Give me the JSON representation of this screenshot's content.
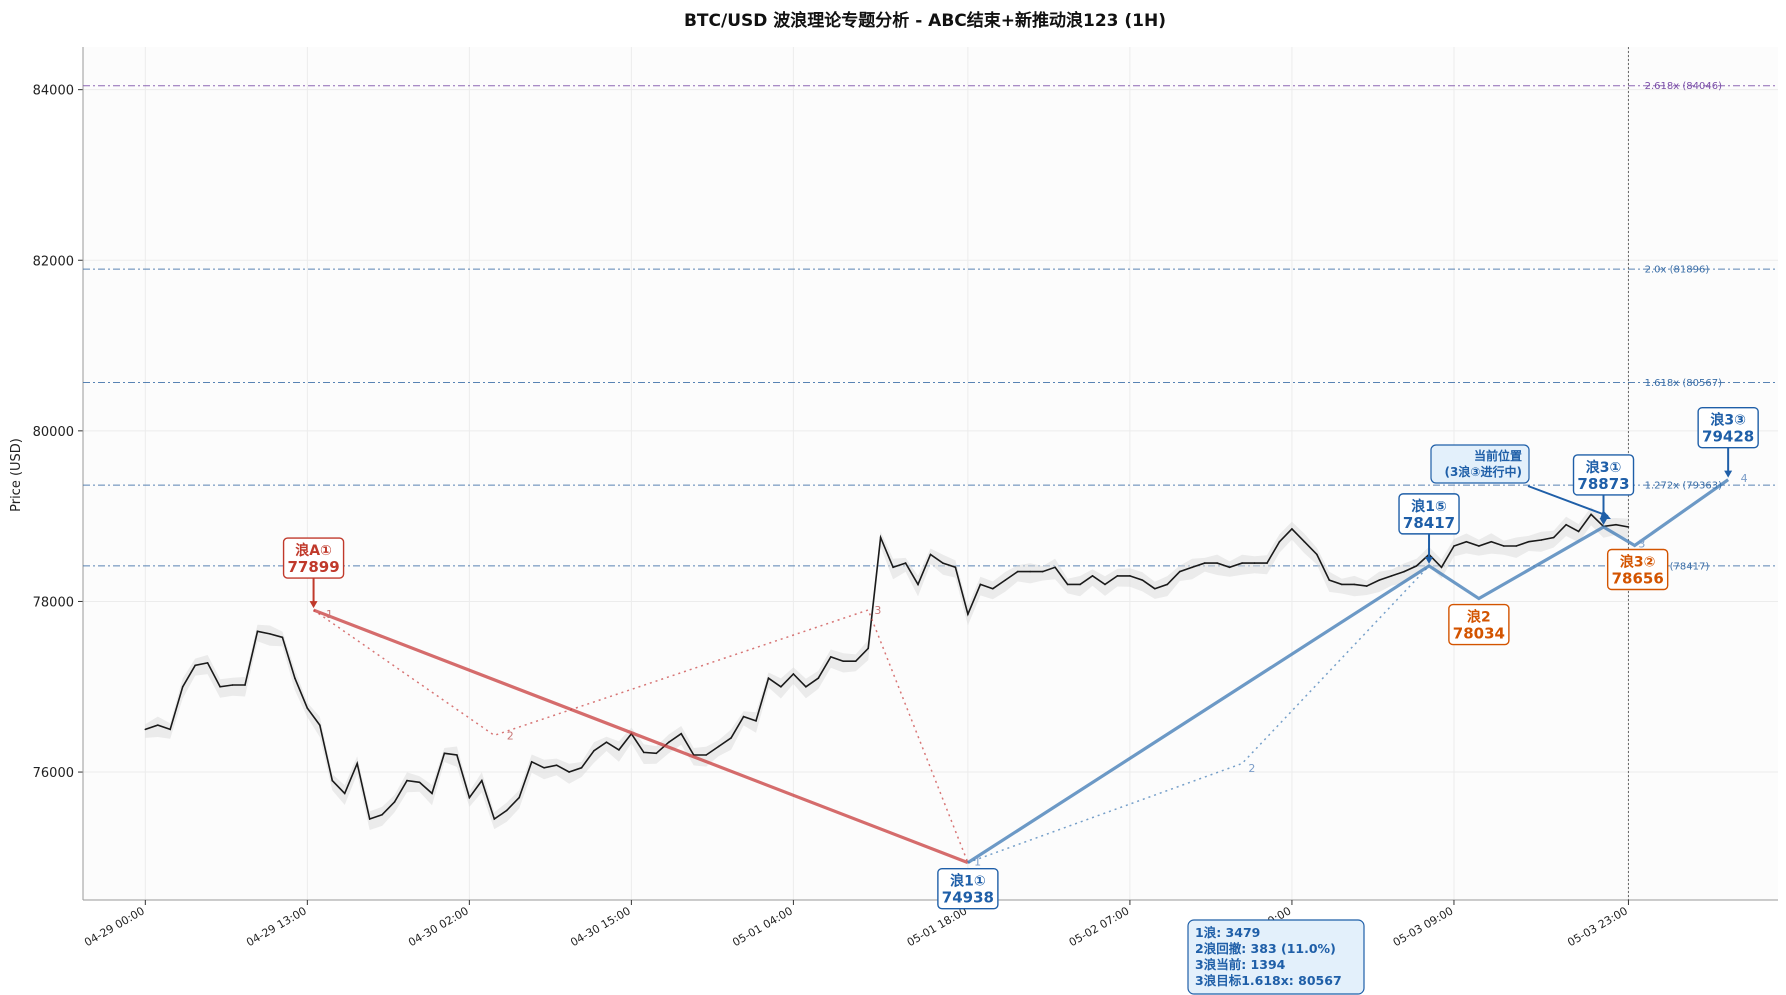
{
  "chart_data": {
    "type": "line",
    "title": "BTC/USD 波浪理论专题分析 - ABC结束+新推动浪123 (1H)",
    "ylabel": "Price (USD)",
    "xlabel": "",
    "ylim": [
      74500,
      84500
    ],
    "yticks": [
      76000,
      78000,
      80000,
      82000,
      84000
    ],
    "x_domain_hours": [
      -5,
      131
    ],
    "x_ticks": [
      {
        "label": "04-29 00:00",
        "h": 0
      },
      {
        "label": "04-29 13:00",
        "h": 13
      },
      {
        "label": "04-30 02:00",
        "h": 26
      },
      {
        "label": "04-30 15:00",
        "h": 39
      },
      {
        "label": "05-01 04:00",
        "h": 52
      },
      {
        "label": "05-01 18:00",
        "h": 66
      },
      {
        "label": "05-02 07:00",
        "h": 79
      },
      {
        "label": "05-02 20:00",
        "h": 92
      },
      {
        "label": "05-03 09:00",
        "h": 105
      },
      {
        "label": "05-03 23:00",
        "h": 119
      }
    ],
    "current_time_h": 119,
    "grid": true,
    "series": [
      {
        "kind": "price",
        "x_hours": [
          0,
          1,
          2,
          3,
          4,
          5,
          6,
          7,
          8,
          9,
          10,
          11,
          12,
          13,
          14,
          15,
          16,
          17,
          18,
          19,
          20,
          21,
          22,
          23,
          24,
          25,
          26,
          27,
          28,
          29,
          30,
          31,
          32,
          33,
          34,
          35,
          36,
          37,
          38,
          39,
          40,
          41,
          42,
          43,
          44,
          45,
          46,
          47,
          48,
          49,
          50,
          51,
          52,
          53,
          54,
          55,
          56,
          57,
          58,
          59,
          60,
          61,
          62,
          63,
          64,
          65,
          66,
          67,
          68,
          69,
          70,
          71,
          72,
          73,
          74,
          75,
          76,
          77,
          78,
          79,
          80,
          81,
          82,
          83,
          84,
          85,
          86,
          87,
          88,
          89,
          90,
          91,
          92,
          93,
          94,
          95,
          96,
          97,
          98,
          99,
          100,
          101,
          102,
          103,
          104,
          105,
          106,
          107,
          108,
          109,
          110,
          111,
          112,
          113,
          114,
          115,
          116,
          117,
          118,
          119
        ],
        "values": [
          76500,
          76550,
          76500,
          77000,
          77250,
          77280,
          77000,
          77020,
          77020,
          77650,
          77620,
          77580,
          77100,
          76750,
          76550,
          75900,
          75750,
          76100,
          75450,
          75500,
          75650,
          75900,
          75880,
          75750,
          76220,
          76200,
          75700,
          75900,
          75450,
          75550,
          75700,
          76120,
          76050,
          76080,
          76000,
          76050,
          76250,
          76350,
          76260,
          76450,
          76230,
          76220,
          76350,
          76450,
          76200,
          76200,
          76300,
          76400,
          76650,
          76600,
          77100,
          77000,
          77150,
          77000,
          77100,
          77350,
          77300,
          77300,
          77450,
          78750,
          78400,
          78450,
          78200,
          78550,
          78450,
          78400,
          77850,
          78200,
          78150,
          78250,
          78350,
          78350,
          78350,
          78400,
          78200,
          78200,
          78300,
          78200,
          78300,
          78300,
          78250,
          78150,
          78200,
          78350,
          78400,
          78450,
          78450,
          78400,
          78450,
          78450,
          78450,
          78700,
          78850,
          78700,
          78550,
          78250,
          78200,
          78200,
          78180,
          78250,
          78300,
          78350,
          78417,
          78550,
          78400,
          78650,
          78700,
          78650,
          78700,
          78650,
          78650,
          78700,
          78720,
          78750,
          78900,
          78820,
          79020,
          78880,
          78900,
          78873
        ]
      }
    ],
    "waves": {
      "abc": {
        "color": "#c83c3c",
        "points": [
          {
            "h": 13.5,
            "v": 77899
          },
          {
            "h": 66,
            "v": 74938
          }
        ],
        "sub_path": [
          {
            "h": 13.5,
            "v": 77899
          },
          {
            "h": 28,
            "v": 76430
          },
          {
            "h": 58,
            "v": 77900
          },
          {
            "h": 66,
            "v": 74938
          }
        ],
        "sub_labels": [
          "1",
          "2",
          "3"
        ]
      },
      "impulse": {
        "color": "#3c78b4",
        "points": [
          {
            "h": 66,
            "v": 74938
          },
          {
            "h": 103,
            "v": 78417
          },
          {
            "h": 107,
            "v": 78034
          },
          {
            "h": 117,
            "v": 78873
          },
          {
            "h": 119.5,
            "v": 78656
          },
          {
            "h": 127,
            "v": 79428
          }
        ],
        "sub_path": [
          {
            "h": 66,
            "v": 74938
          },
          {
            "h": 88,
            "v": 76100
          },
          {
            "h": 103,
            "v": 78417
          }
        ],
        "sub_labels": [
          "1",
          "2",
          "3",
          "4"
        ]
      }
    },
    "fib_levels": [
      {
        "label": "2.618x (84046)",
        "value": 84046,
        "color": "#7b4fa8"
      },
      {
        "label": "2.0x (81896)",
        "value": 81896,
        "color": "#3c6fa8"
      },
      {
        "label": "1.618x (80567)",
        "value": 80567,
        "color": "#3c6fa8"
      },
      {
        "label": "1.272x (79363)",
        "value": 79363,
        "color": "#3c6fa8"
      },
      {
        "label": "1.0x (78417)",
        "value": 78417,
        "color": "#3c6fa8"
      }
    ],
    "annotations": [
      {
        "id": "waveA1",
        "line1": "浪A①",
        "line2": "77899",
        "h": 13.5,
        "v": 77899,
        "color": "#c0392b"
      },
      {
        "id": "wave1-1",
        "line1": "浪1①",
        "line2": "74938",
        "h": 66,
        "v": 74938,
        "color": "#1f5fa8"
      },
      {
        "id": "wave1-5",
        "line1": "浪1⑤",
        "line2": "78417",
        "h": 103,
        "v": 78417,
        "color": "#1f5fa8"
      },
      {
        "id": "wave2",
        "line1": "浪2",
        "line2": "78034",
        "h": 107,
        "v": 78034,
        "color": "#d35400"
      },
      {
        "id": "wave3-1",
        "line1": "浪3①",
        "line2": "78873",
        "h": 117,
        "v": 78873,
        "color": "#1f5fa8"
      },
      {
        "id": "wave3-2",
        "line1": "浪3②",
        "line2": "78656",
        "h": 119.5,
        "v": 78656,
        "color": "#d35400"
      },
      {
        "id": "wave3-3",
        "line1": "浪3③",
        "line2": "79428",
        "h": 127,
        "v": 79428,
        "color": "#1f5fa8"
      }
    ],
    "current_position": {
      "line1": "当前位置",
      "line2": "(3浪③进行中)"
    },
    "stats_box": [
      "1浪: 3479",
      "2浪回撤: 383 (11.0%)",
      "3浪当前: 1394",
      "3浪目标1.618x: 80567"
    ]
  }
}
